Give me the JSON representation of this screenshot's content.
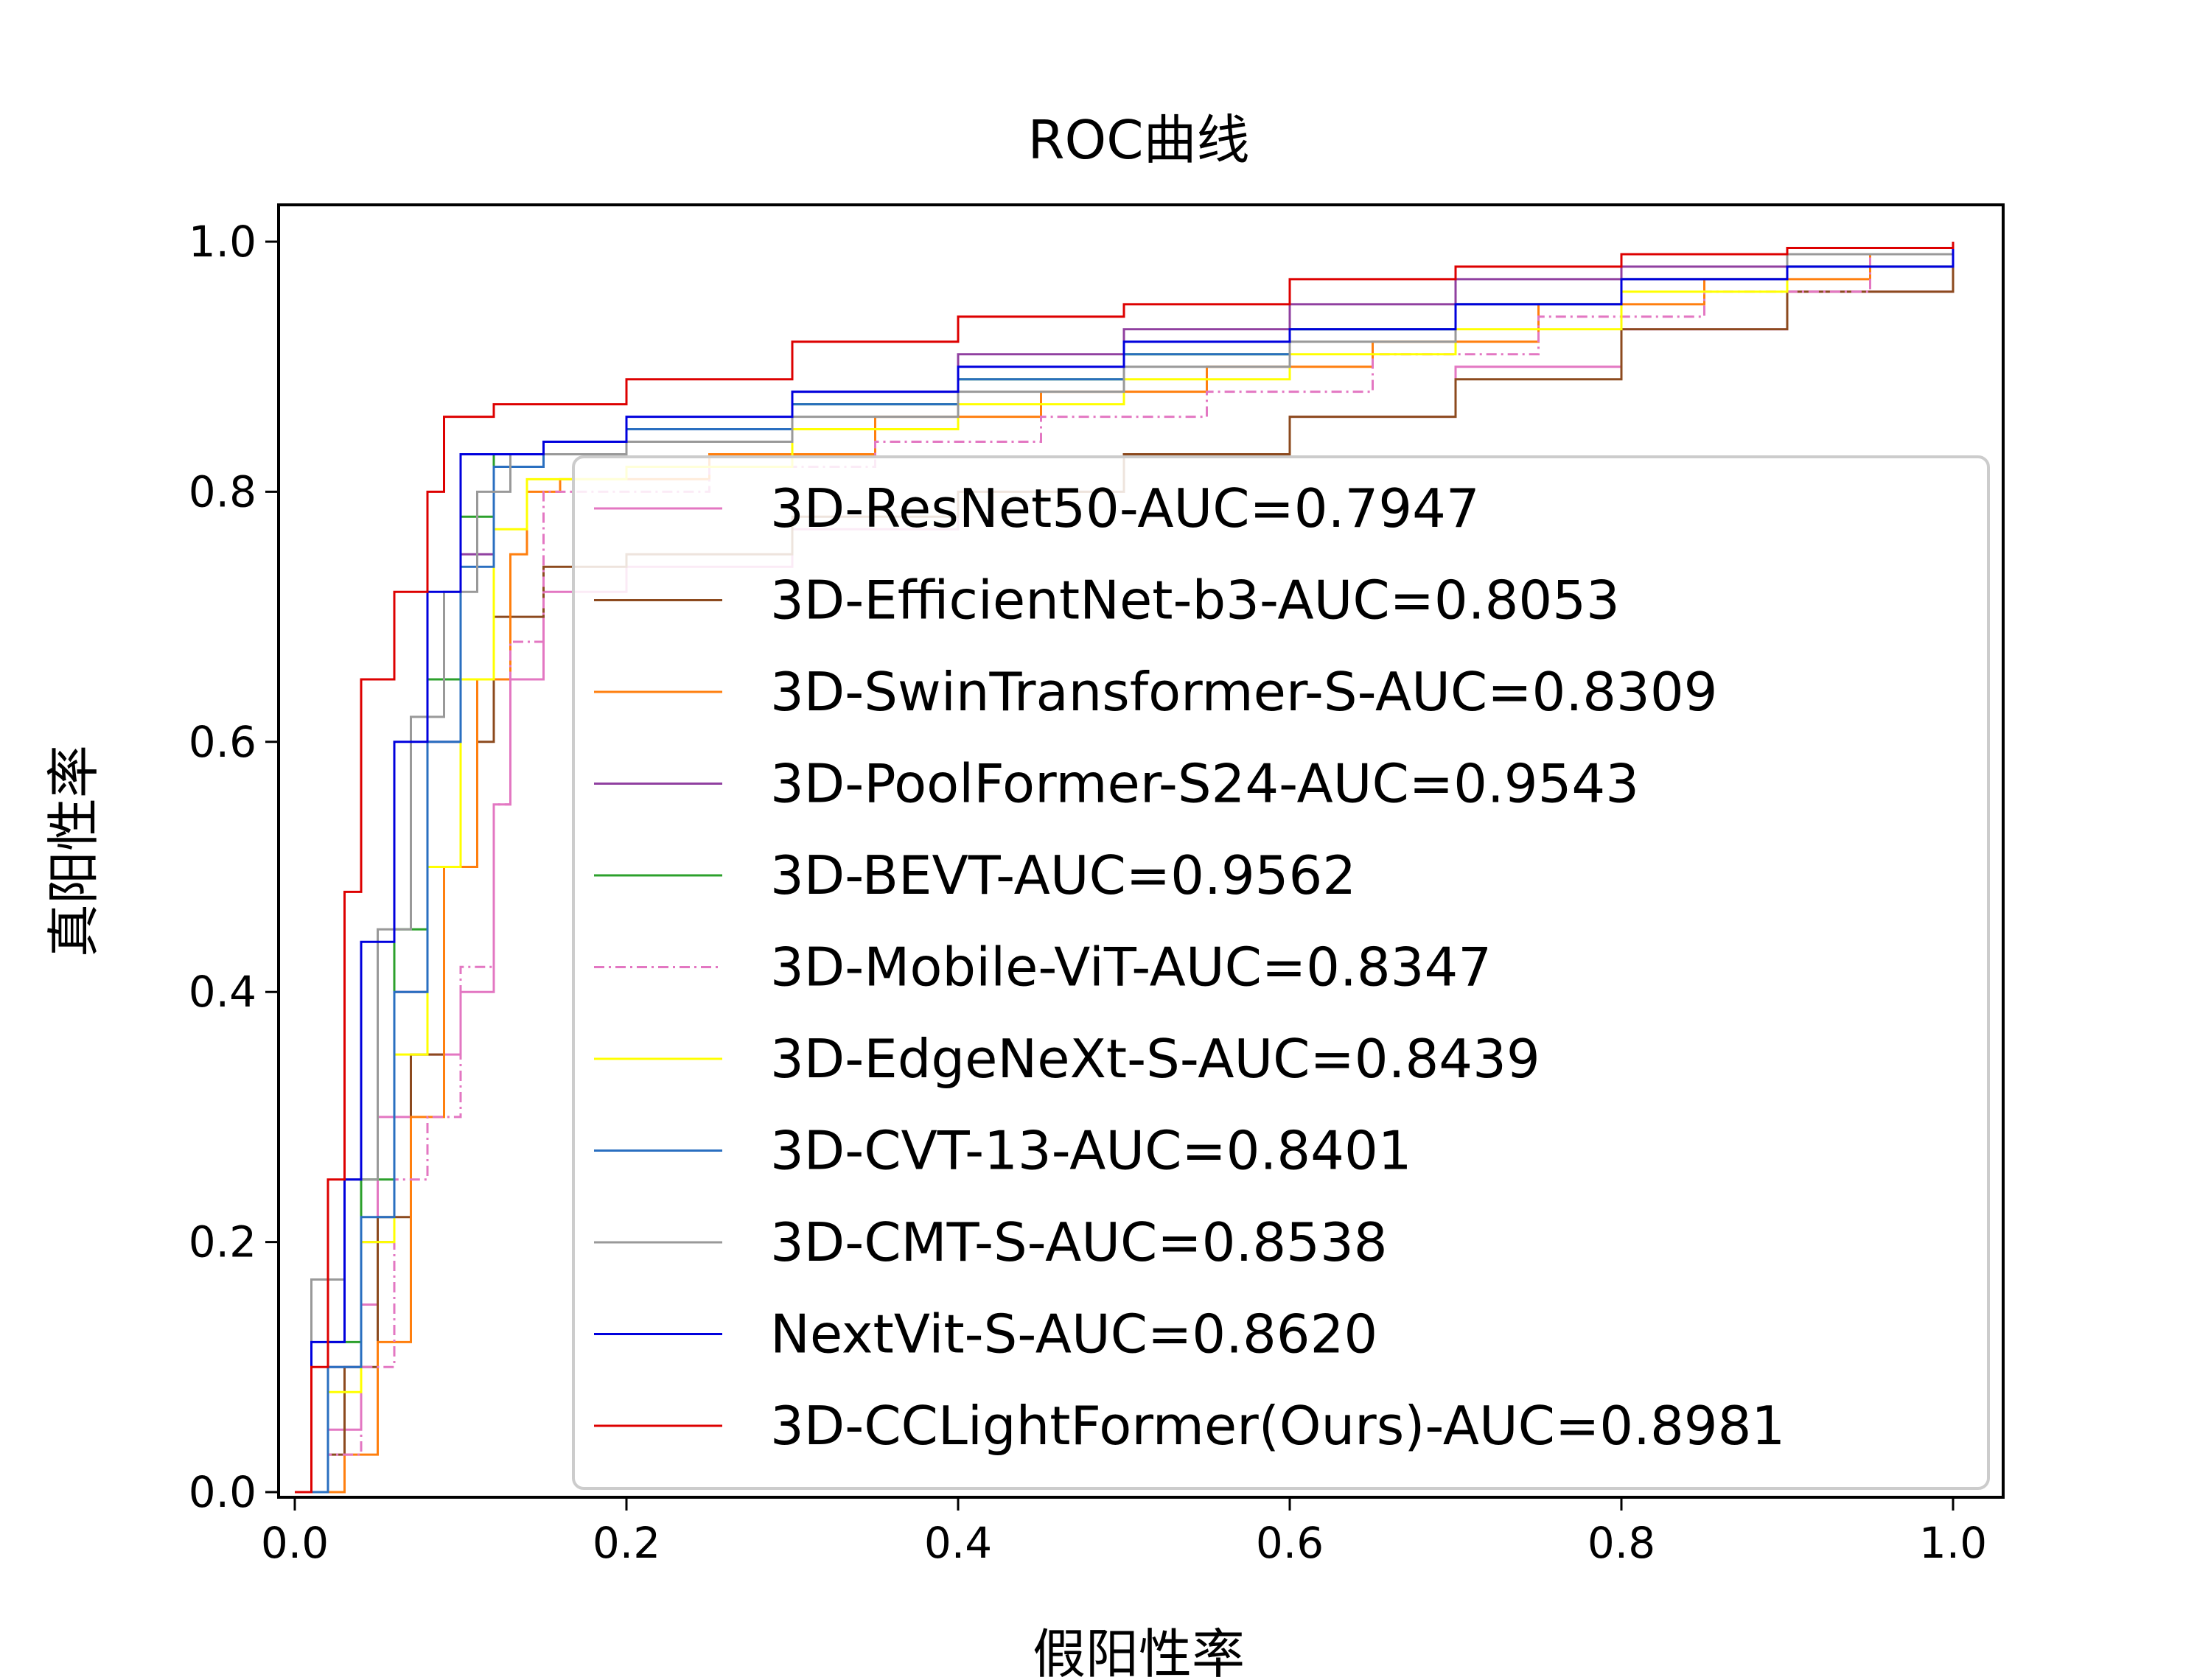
{
  "chart_data": {
    "type": "line",
    "title": "ROC曲线",
    "xlabel": "假阳性率",
    "ylabel": "真阳性率",
    "xlim": [
      0.0,
      1.0
    ],
    "ylim": [
      0.0,
      1.0
    ],
    "xticks": [
      "0.0",
      "0.2",
      "0.4",
      "0.6",
      "0.8",
      "1.0"
    ],
    "yticks": [
      "0.0",
      "0.2",
      "0.4",
      "0.6",
      "0.8",
      "1.0"
    ],
    "grid": false,
    "legend_position": "lower-right",
    "series": [
      {
        "name": "3D-ResNet50-AUC=0.7947",
        "color": "#e377c2",
        "dash": "solid",
        "points": [
          [
            0,
            0
          ],
          [
            0.02,
            0.05
          ],
          [
            0.04,
            0.15
          ],
          [
            0.05,
            0.3
          ],
          [
            0.07,
            0.35
          ],
          [
            0.1,
            0.4
          ],
          [
            0.12,
            0.55
          ],
          [
            0.13,
            0.65
          ],
          [
            0.15,
            0.72
          ],
          [
            0.2,
            0.74
          ],
          [
            0.3,
            0.77
          ],
          [
            0.4,
            0.8
          ],
          [
            0.5,
            0.83
          ],
          [
            0.6,
            0.86
          ],
          [
            0.7,
            0.9
          ],
          [
            0.8,
            0.93
          ],
          [
            0.9,
            0.96
          ],
          [
            1.0,
            1.0
          ]
        ]
      },
      {
        "name": "3D-EfficientNet-b3-AUC=0.8053",
        "color": "#8c4a1e",
        "dash": "solid",
        "points": [
          [
            0,
            0
          ],
          [
            0.02,
            0.03
          ],
          [
            0.03,
            0.1
          ],
          [
            0.05,
            0.22
          ],
          [
            0.07,
            0.35
          ],
          [
            0.09,
            0.5
          ],
          [
            0.11,
            0.6
          ],
          [
            0.12,
            0.7
          ],
          [
            0.15,
            0.74
          ],
          [
            0.2,
            0.75
          ],
          [
            0.3,
            0.78
          ],
          [
            0.4,
            0.8
          ],
          [
            0.5,
            0.83
          ],
          [
            0.6,
            0.86
          ],
          [
            0.7,
            0.89
          ],
          [
            0.8,
            0.93
          ],
          [
            0.9,
            0.96
          ],
          [
            1.0,
            1.0
          ]
        ]
      },
      {
        "name": "3D-SwinTransformer-S-AUC=0.8309",
        "color": "#ff7f0e",
        "dash": "solid",
        "points": [
          [
            0,
            0
          ],
          [
            0.03,
            0.03
          ],
          [
            0.05,
            0.12
          ],
          [
            0.07,
            0.3
          ],
          [
            0.09,
            0.5
          ],
          [
            0.11,
            0.65
          ],
          [
            0.13,
            0.75
          ],
          [
            0.14,
            0.8
          ],
          [
            0.16,
            0.81
          ],
          [
            0.25,
            0.83
          ],
          [
            0.35,
            0.86
          ],
          [
            0.45,
            0.88
          ],
          [
            0.55,
            0.9
          ],
          [
            0.65,
            0.92
          ],
          [
            0.75,
            0.95
          ],
          [
            0.85,
            0.97
          ],
          [
            0.95,
            0.99
          ],
          [
            1.0,
            1.0
          ]
        ]
      },
      {
        "name": "3D-PoolFormer-S24-AUC=0.9543",
        "color": "#9040a0",
        "dash": "solid",
        "points": [
          [
            0,
            0
          ],
          [
            0.02,
            0.1
          ],
          [
            0.04,
            0.2
          ],
          [
            0.06,
            0.4
          ],
          [
            0.08,
            0.6
          ],
          [
            0.1,
            0.75
          ],
          [
            0.12,
            0.82
          ],
          [
            0.15,
            0.84
          ],
          [
            0.2,
            0.85
          ],
          [
            0.3,
            0.88
          ],
          [
            0.4,
            0.91
          ],
          [
            0.5,
            0.93
          ],
          [
            0.6,
            0.95
          ],
          [
            0.7,
            0.97
          ],
          [
            0.8,
            0.98
          ],
          [
            0.9,
            0.99
          ],
          [
            1.0,
            1.0
          ]
        ]
      },
      {
        "name": "3D-BEVT-AUC=0.9562",
        "color": "#2ca02c",
        "dash": "solid",
        "points": [
          [
            0,
            0
          ],
          [
            0.02,
            0.12
          ],
          [
            0.04,
            0.25
          ],
          [
            0.06,
            0.45
          ],
          [
            0.08,
            0.65
          ],
          [
            0.1,
            0.78
          ],
          [
            0.12,
            0.83
          ],
          [
            0.15,
            0.84
          ],
          [
            0.2,
            0.85
          ],
          [
            0.3,
            0.87
          ],
          [
            0.4,
            0.89
          ],
          [
            0.5,
            0.91
          ],
          [
            0.6,
            0.93
          ],
          [
            0.7,
            0.95
          ],
          [
            0.8,
            0.97
          ],
          [
            0.9,
            0.99
          ],
          [
            1.0,
            1.0
          ]
        ]
      },
      {
        "name": "3D-Mobile-ViT-AUC=0.8347",
        "color": "#e377c2",
        "dash": "dashdot",
        "points": [
          [
            0,
            0
          ],
          [
            0.02,
            0.03
          ],
          [
            0.04,
            0.1
          ],
          [
            0.06,
            0.25
          ],
          [
            0.08,
            0.3
          ],
          [
            0.1,
            0.42
          ],
          [
            0.12,
            0.55
          ],
          [
            0.13,
            0.68
          ],
          [
            0.15,
            0.8
          ],
          [
            0.25,
            0.82
          ],
          [
            0.35,
            0.84
          ],
          [
            0.45,
            0.86
          ],
          [
            0.55,
            0.88
          ],
          [
            0.65,
            0.91
          ],
          [
            0.75,
            0.94
          ],
          [
            0.85,
            0.96
          ],
          [
            0.95,
            0.99
          ],
          [
            1.0,
            1.0
          ]
        ]
      },
      {
        "name": "3D-EdgeNeXt-S-AUC=0.8439",
        "color": "#ffff00",
        "dash": "solid",
        "points": [
          [
            0,
            0
          ],
          [
            0.02,
            0.08
          ],
          [
            0.04,
            0.2
          ],
          [
            0.06,
            0.35
          ],
          [
            0.08,
            0.5
          ],
          [
            0.1,
            0.65
          ],
          [
            0.12,
            0.77
          ],
          [
            0.14,
            0.81
          ],
          [
            0.2,
            0.82
          ],
          [
            0.3,
            0.85
          ],
          [
            0.4,
            0.87
          ],
          [
            0.5,
            0.89
          ],
          [
            0.6,
            0.91
          ],
          [
            0.7,
            0.93
          ],
          [
            0.8,
            0.96
          ],
          [
            0.9,
            0.98
          ],
          [
            1.0,
            1.0
          ]
        ]
      },
      {
        "name": "3D-CVT-13-AUC=0.8401",
        "color": "#2a6fc0",
        "dash": "solid",
        "points": [
          [
            0,
            0
          ],
          [
            0.02,
            0.1
          ],
          [
            0.04,
            0.22
          ],
          [
            0.06,
            0.4
          ],
          [
            0.08,
            0.6
          ],
          [
            0.1,
            0.74
          ],
          [
            0.12,
            0.82
          ],
          [
            0.15,
            0.83
          ],
          [
            0.2,
            0.85
          ],
          [
            0.3,
            0.87
          ],
          [
            0.4,
            0.89
          ],
          [
            0.5,
            0.91
          ],
          [
            0.6,
            0.93
          ],
          [
            0.7,
            0.95
          ],
          [
            0.8,
            0.97
          ],
          [
            0.9,
            0.98
          ],
          [
            1.0,
            1.0
          ]
        ]
      },
      {
        "name": "3D-CMT-S-AUC=0.8538",
        "color": "#999999",
        "dash": "solid",
        "points": [
          [
            0,
            0
          ],
          [
            0.01,
            0.17
          ],
          [
            0.03,
            0.25
          ],
          [
            0.05,
            0.45
          ],
          [
            0.07,
            0.62
          ],
          [
            0.09,
            0.72
          ],
          [
            0.11,
            0.8
          ],
          [
            0.13,
            0.83
          ],
          [
            0.2,
            0.84
          ],
          [
            0.3,
            0.86
          ],
          [
            0.4,
            0.88
          ],
          [
            0.5,
            0.9
          ],
          [
            0.6,
            0.92
          ],
          [
            0.7,
            0.95
          ],
          [
            0.8,
            0.97
          ],
          [
            0.9,
            0.99
          ],
          [
            1.0,
            1.0
          ]
        ]
      },
      {
        "name": "NextVit-S-AUC=0.8620",
        "color": "#0000dd",
        "dash": "solid",
        "points": [
          [
            0,
            0
          ],
          [
            0.01,
            0.12
          ],
          [
            0.03,
            0.25
          ],
          [
            0.04,
            0.44
          ],
          [
            0.06,
            0.6
          ],
          [
            0.08,
            0.72
          ],
          [
            0.1,
            0.83
          ],
          [
            0.15,
            0.84
          ],
          [
            0.2,
            0.86
          ],
          [
            0.3,
            0.88
          ],
          [
            0.4,
            0.9
          ],
          [
            0.5,
            0.92
          ],
          [
            0.6,
            0.93
          ],
          [
            0.7,
            0.95
          ],
          [
            0.8,
            0.97
          ],
          [
            0.9,
            0.98
          ],
          [
            1.0,
            1.0
          ]
        ]
      },
      {
        "name": "3D-CCLightFormer(Ours)-AUC=0.8981",
        "color": "#dd0000",
        "dash": "solid",
        "points": [
          [
            0,
            0
          ],
          [
            0.01,
            0.1
          ],
          [
            0.02,
            0.25
          ],
          [
            0.03,
            0.48
          ],
          [
            0.04,
            0.65
          ],
          [
            0.06,
            0.72
          ],
          [
            0.08,
            0.8
          ],
          [
            0.09,
            0.86
          ],
          [
            0.12,
            0.87
          ],
          [
            0.2,
            0.89
          ],
          [
            0.3,
            0.92
          ],
          [
            0.4,
            0.94
          ],
          [
            0.5,
            0.95
          ],
          [
            0.6,
            0.97
          ],
          [
            0.7,
            0.98
          ],
          [
            0.8,
            0.99
          ],
          [
            0.9,
            0.995
          ],
          [
            1.0,
            1.0
          ]
        ]
      }
    ]
  }
}
